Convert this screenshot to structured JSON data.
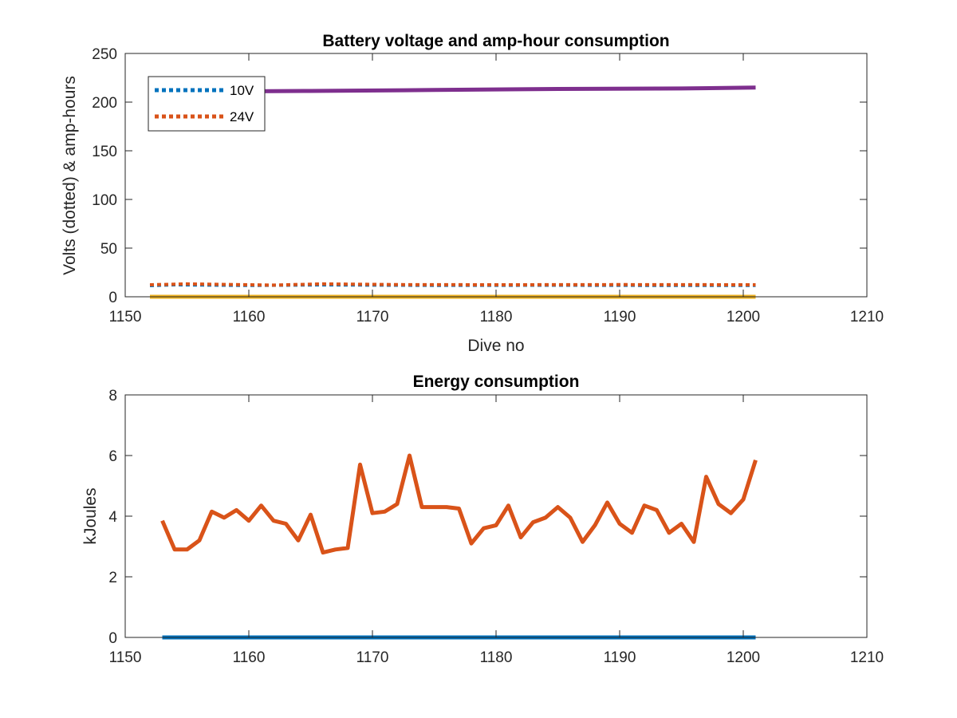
{
  "chart_data": [
    {
      "type": "line",
      "title": "Battery voltage and amp-hour consumption",
      "xlabel": "Dive no",
      "ylabel": "Volts (dotted) & amp-hours",
      "xlim": [
        1150,
        1210
      ],
      "ylim": [
        0,
        250
      ],
      "xticks": [
        1150,
        1160,
        1170,
        1180,
        1190,
        1200,
        1210
      ],
      "yticks": [
        0,
        50,
        100,
        150,
        200,
        250
      ],
      "legend_position": "top-left",
      "legend": [
        {
          "label": "10V",
          "color": "#0072BD",
          "style": "dotted"
        },
        {
          "label": "24V",
          "color": "#D95319",
          "style": "dotted"
        }
      ],
      "series": [
        {
          "name": "10V",
          "color": "#0072BD",
          "style": "dotted",
          "x": [
            1152,
            1154,
            1160,
            1166,
            1175,
            1185,
            1195,
            1201
          ],
          "y": [
            11.5,
            12.3,
            11.6,
            12.2,
            11.7,
            11.9,
            11.6,
            11.6
          ]
        },
        {
          "name": "24V",
          "color": "#D95319",
          "style": "dotted",
          "x": [
            1152,
            1155,
            1162,
            1166,
            1172,
            1180,
            1190,
            1201
          ],
          "y": [
            12.3,
            13.2,
            12.0,
            13.2,
            12.5,
            12.3,
            12.5,
            12.3
          ]
        },
        {
          "color": "#EDB120",
          "style": "solid",
          "x": [
            1152,
            1201
          ],
          "y": [
            0,
            0
          ]
        },
        {
          "color": "#7E2F8E",
          "style": "solid",
          "x": [
            1158,
            1165,
            1175,
            1185,
            1195,
            1201
          ],
          "y": [
            211,
            211.5,
            212.5,
            213.5,
            214,
            215
          ]
        }
      ]
    },
    {
      "type": "line",
      "title": "Energy consumption",
      "xlabel": "",
      "ylabel": "kJoules",
      "xlim": [
        1150,
        1210
      ],
      "ylim": [
        0,
        8
      ],
      "xticks": [
        1150,
        1160,
        1170,
        1180,
        1190,
        1200,
        1210
      ],
      "yticks": [
        0,
        2,
        4,
        6,
        8
      ],
      "series": [
        {
          "color": "#0072BD",
          "style": "solid",
          "x": [
            1153,
            1201
          ],
          "y": [
            0,
            0
          ]
        },
        {
          "color": "#D95319",
          "style": "solid",
          "x": [
            1153,
            1154,
            1155,
            1156,
            1157,
            1158,
            1159,
            1160,
            1161,
            1162,
            1163,
            1164,
            1165,
            1166,
            1167,
            1168,
            1169,
            1170,
            1171,
            1172,
            1173,
            1174,
            1175,
            1176,
            1177,
            1178,
            1179,
            1180,
            1181,
            1182,
            1183,
            1184,
            1185,
            1186,
            1187,
            1188,
            1189,
            1190,
            1191,
            1192,
            1193,
            1194,
            1195,
            1196,
            1197,
            1198,
            1199,
            1200,
            1201
          ],
          "y": [
            3.85,
            2.9,
            2.9,
            3.2,
            4.15,
            3.95,
            4.2,
            3.85,
            4.35,
            3.85,
            3.75,
            3.2,
            4.05,
            2.8,
            2.9,
            2.95,
            5.7,
            4.1,
            4.15,
            4.4,
            6.0,
            4.3,
            4.3,
            4.3,
            4.25,
            3.1,
            3.6,
            3.7,
            4.35,
            3.3,
            3.8,
            3.95,
            4.3,
            3.95,
            3.15,
            3.7,
            4.45,
            3.75,
            3.45,
            4.35,
            4.2,
            3.45,
            3.75,
            3.15,
            5.3,
            4.4,
            4.1,
            4.55,
            5.85
          ]
        }
      ]
    }
  ]
}
